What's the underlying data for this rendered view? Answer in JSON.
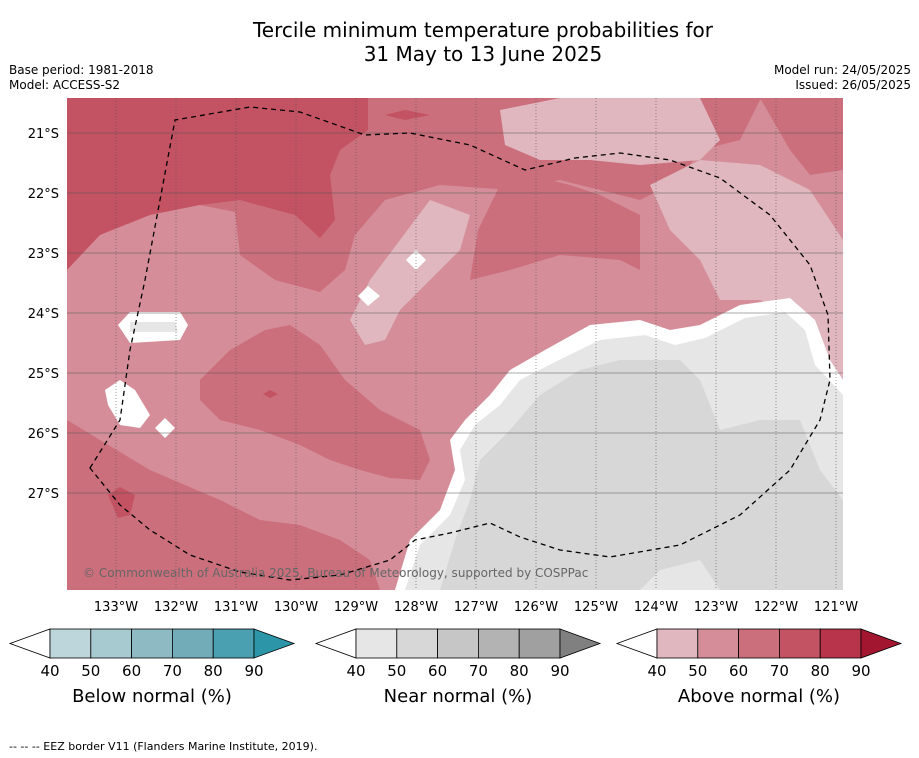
{
  "title_line1": "Tercile minimum temperature probabilities for",
  "title_line2": "31 May to 13 June 2025",
  "meta": {
    "base_period": "Base period: 1981-2018",
    "model": "Model: ACCESS-S2",
    "model_run": "Model run: 24/05/2025",
    "issued": "Issued: 26/05/2025"
  },
  "map": {
    "lat_labels": [
      "21°S",
      "22°S",
      "23°S",
      "24°S",
      "25°S",
      "26°S",
      "27°S"
    ],
    "lon_labels": [
      "133°W",
      "132°W",
      "131°W",
      "130°W",
      "129°W",
      "128°W",
      "127°W",
      "126°W",
      "125°W",
      "124°W",
      "123°W",
      "122°W",
      "121°W"
    ],
    "copyright": "© Commonwealth of Australia 2025, Bureau of Meteorology, supported by COSPPac",
    "eez_border_style": "dashed"
  },
  "colorbars": [
    {
      "label": "Below normal (%)",
      "ticks": [
        "40",
        "50",
        "60",
        "70",
        "80",
        "90"
      ],
      "colors": [
        "#bdd6dc",
        "#a7c9d0",
        "#8ebac4",
        "#72acb8",
        "#4aa0b0",
        "#2c96a8"
      ]
    },
    {
      "label": "Near normal (%)",
      "ticks": [
        "40",
        "50",
        "60",
        "70",
        "80",
        "90"
      ],
      "colors": [
        "#e6e6e6",
        "#d7d7d7",
        "#c6c6c6",
        "#b3b3b3",
        "#a0a0a0",
        "#808080"
      ]
    },
    {
      "label": "Above normal (%)",
      "ticks": [
        "40",
        "50",
        "60",
        "70",
        "80",
        "90"
      ],
      "colors": [
        "#e0b7be",
        "#d58e99",
        "#cc6f7c",
        "#c35262",
        "#b8344b",
        "#a3162f"
      ]
    }
  ],
  "footnote": "--  --  -- EEZ border V11 (Flanders Marine Institute, 2019)."
}
